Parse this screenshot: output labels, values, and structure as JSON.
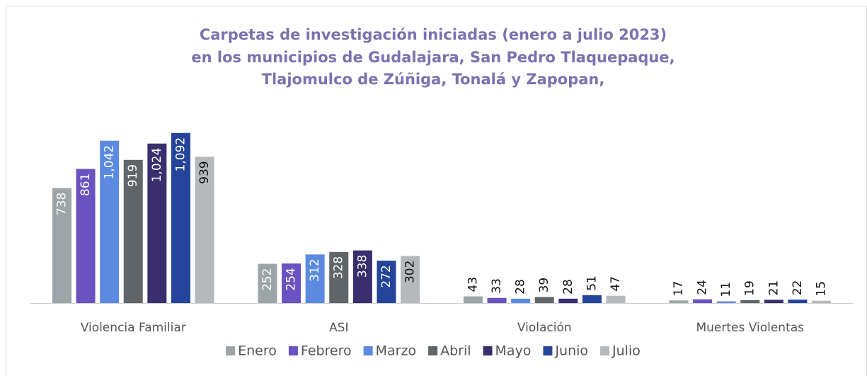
{
  "chart_data": {
    "type": "bar",
    "title": [
      "Carpetas de investigación iniciadas (enero a julio 2023)",
      "en los municipios de Gudalajara, San Pedro Tlaquepaque,",
      "Tlajomulco de Zúñiga, Tonalá y Zapopan,"
    ],
    "categories": [
      "Violencia Familiar",
      "ASI",
      "Violación",
      "Muertes Violentas"
    ],
    "series": [
      {
        "name": "Enero",
        "color": "#9ea5a8",
        "values": [
          738,
          252,
          43,
          17
        ]
      },
      {
        "name": "Febrero",
        "color": "#6a52c0",
        "values": [
          861,
          254,
          33,
          24
        ]
      },
      {
        "name": "Marzo",
        "color": "#5b8ae0",
        "values": [
          1042,
          312,
          28,
          11
        ],
        "value_labels": [
          "1,042",
          "312",
          "28",
          "11"
        ]
      },
      {
        "name": "Abril",
        "color": "#5f6568",
        "values": [
          919,
          328,
          39,
          19
        ]
      },
      {
        "name": "Mayo",
        "color": "#3a2e6e",
        "values": [
          1024,
          338,
          28,
          21
        ],
        "value_labels": [
          "1,024",
          "338",
          "28",
          "21"
        ]
      },
      {
        "name": "Junio",
        "color": "#24449a",
        "values": [
          1092,
          272,
          51,
          22
        ],
        "value_labels": [
          "1,092",
          "272",
          "51",
          "22"
        ]
      },
      {
        "name": "Julio",
        "color": "#b5b9bb",
        "values": [
          939,
          302,
          47,
          15
        ]
      }
    ]
  }
}
